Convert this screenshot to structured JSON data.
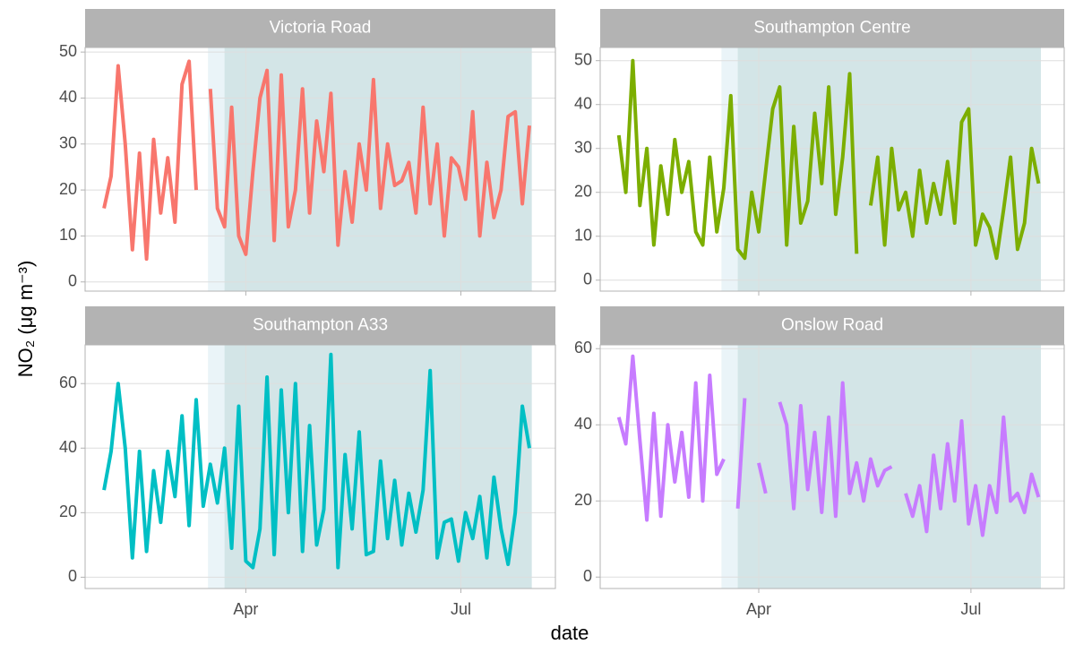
{
  "chart_data": {
    "type": "line",
    "xlabel": "date",
    "ylabel": "NO₂ (μg m⁻³)",
    "x": [
      31,
      34,
      37,
      40,
      43,
      46,
      49,
      52,
      55,
      58,
      61,
      64,
      67,
      70,
      73,
      76,
      79,
      82,
      85,
      88,
      91,
      94,
      97,
      100,
      103,
      106,
      109,
      112,
      115,
      118,
      121,
      124,
      127,
      130,
      133,
      136,
      139,
      142,
      145,
      148,
      151,
      154,
      157,
      160,
      163,
      166,
      169,
      172,
      175,
      178,
      181,
      184,
      187,
      190,
      193,
      196,
      199,
      202,
      205,
      208,
      211
    ],
    "xlim": [
      23,
      222
    ],
    "xticks": [
      {
        "value": 91,
        "label": "Apr"
      },
      {
        "value": 182,
        "label": "Jul"
      }
    ],
    "grid": true,
    "shaded_periods": [
      {
        "start": 75,
        "end": 212,
        "color": "#eaf4f8"
      },
      {
        "start": 82,
        "end": 212,
        "color": "#d3e5e7"
      }
    ],
    "series": [
      {
        "name": "Victoria Road",
        "color": "#F8766D",
        "ylim": [
          -2,
          51
        ],
        "yticks": [
          0,
          10,
          20,
          30,
          40,
          50
        ],
        "values": [
          16,
          23,
          47,
          30,
          7,
          28,
          5,
          31,
          15,
          27,
          13,
          43,
          48,
          20,
          null,
          42,
          16,
          12,
          38,
          10,
          6,
          24,
          40,
          46,
          9,
          45,
          12,
          20,
          42,
          15,
          35,
          24,
          41,
          8,
          24,
          13,
          30,
          20,
          44,
          16,
          30,
          21,
          22,
          26,
          15,
          38,
          17,
          30,
          10,
          27,
          25,
          18,
          37,
          10,
          26,
          14,
          20,
          36,
          37,
          17,
          34
        ]
      },
      {
        "name": "Southampton Centre",
        "color": "#7CAE00",
        "ylim": [
          -2.5,
          53
        ],
        "yticks": [
          0,
          10,
          20,
          30,
          40,
          50
        ],
        "values": [
          33,
          20,
          50,
          17,
          30,
          8,
          26,
          15,
          32,
          20,
          27,
          11,
          8,
          28,
          11,
          21,
          42,
          7,
          5,
          20,
          11,
          25,
          39,
          44,
          8,
          35,
          13,
          18,
          38,
          22,
          44,
          15,
          28,
          47,
          6,
          null,
          17,
          28,
          8,
          30,
          16,
          20,
          10,
          25,
          13,
          22,
          15,
          27,
          13,
          36,
          39,
          8,
          15,
          12,
          5,
          16,
          28,
          7,
          13,
          30,
          22
        ]
      },
      {
        "name": "Southampton A33",
        "color": "#00BFC4",
        "ylim": [
          -3.5,
          72
        ],
        "yticks": [
          0,
          20,
          40,
          60
        ],
        "values": [
          27,
          39,
          60,
          40,
          6,
          39,
          8,
          33,
          17,
          39,
          25,
          50,
          16,
          55,
          22,
          35,
          23,
          40,
          9,
          53,
          5,
          3,
          15,
          62,
          7,
          58,
          20,
          60,
          8,
          47,
          10,
          21,
          69,
          3,
          38,
          15,
          45,
          7,
          8,
          36,
          12,
          30,
          10,
          26,
          14,
          27,
          64,
          6,
          17,
          18,
          5,
          20,
          12,
          25,
          6,
          31,
          15,
          4,
          20,
          53,
          40
        ]
      },
      {
        "name": "Onslow Road",
        "color": "#C77CFF",
        "ylim": [
          -3,
          61
        ],
        "yticks": [
          0,
          20,
          40,
          60
        ],
        "values": [
          42,
          35,
          58,
          36,
          15,
          43,
          16,
          40,
          25,
          38,
          21,
          51,
          20,
          53,
          27,
          31,
          null,
          18,
          47,
          null,
          30,
          22,
          null,
          46,
          40,
          18,
          45,
          23,
          38,
          17,
          42,
          16,
          51,
          22,
          30,
          20,
          31,
          24,
          28,
          29,
          null,
          22,
          16,
          24,
          12,
          32,
          18,
          35,
          20,
          41,
          14,
          24,
          11,
          24,
          17,
          42,
          20,
          22,
          17,
          27,
          21
        ]
      }
    ]
  }
}
